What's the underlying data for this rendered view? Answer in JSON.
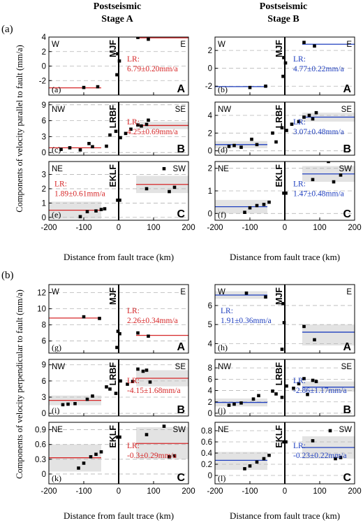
{
  "figure": {
    "columns": [
      {
        "line1": "Postseismic",
        "line2": "Stage A"
      },
      {
        "line1": "Postseismic",
        "line2": "Stage B"
      }
    ],
    "sections": [
      {
        "label": "(a)",
        "ylabel": "Components of velocity parallel to fault (mm/a)",
        "xlabel": "Distance from fault trace (km)"
      },
      {
        "label": "(b)",
        "ylabel": "Components of velocity perpendicular to fault (mm/a)",
        "xlabel": "Distance from fault trace (km)"
      }
    ],
    "colors": {
      "stage_a": "#d62728",
      "stage_b": "#1f3fbf",
      "band": "#e3e3e3",
      "grid": "#b5b5b5"
    }
  },
  "chart_data": [
    {
      "type": "scatter",
      "section": "a",
      "stage": "A",
      "panel_label": "(a)",
      "fault": "MJF",
      "big_letter": "A",
      "left_dir": "W",
      "right_dir": "E",
      "ylim": [
        -4,
        4
      ],
      "yticks": [
        -2,
        0,
        2,
        4
      ],
      "xlim": [
        -200,
        200
      ],
      "xticks": [
        -200,
        -100,
        0,
        100,
        200
      ],
      "left_points": [
        [
          -100,
          -2.95
        ],
        [
          -60,
          -2.85
        ]
      ],
      "center_points": [
        [
          -5,
          -1.2
        ],
        [
          -3,
          1.7
        ],
        [
          2,
          0.7
        ]
      ],
      "right_points": [
        [
          55,
          3.95
        ],
        [
          85,
          3.7
        ]
      ],
      "left_mean": -3.0,
      "left_band": null,
      "right_mean": 3.9,
      "right_band": null,
      "lr_text": [
        "LR:",
        "6.79±0.20mm/a"
      ],
      "lr_pos": "right"
    },
    {
      "type": "scatter",
      "section": "a",
      "stage": "B",
      "panel_label": "(b)",
      "fault": "MJF",
      "big_letter": "A",
      "left_dir": "W",
      "right_dir": "E",
      "ylim": [
        -3,
        3.5
      ],
      "yticks": [
        -2,
        0,
        2
      ],
      "xlim": [
        -200,
        200
      ],
      "xticks": [
        -200,
        -100,
        0,
        100,
        200
      ],
      "left_points": [
        [
          -100,
          -2.15
        ],
        [
          -55,
          -2.0
        ]
      ],
      "center_points": [
        [
          -5,
          -0.9
        ],
        [
          -3,
          1.2
        ],
        [
          2,
          0.6
        ]
      ],
      "right_points": [
        [
          55,
          2.9
        ],
        [
          85,
          2.5
        ]
      ],
      "left_mean": -2.05,
      "left_band": null,
      "right_mean": 2.7,
      "right_band": null,
      "lr_text": [
        "LR:",
        "4.77±0.22mm/a"
      ],
      "lr_pos": "right"
    },
    {
      "type": "scatter",
      "section": "a",
      "stage": "A",
      "panel_label": "(c)",
      "fault": "LRBF",
      "big_letter": "B",
      "left_dir": "NW",
      "right_dir": "SE",
      "ylim": [
        -0.5,
        9.5
      ],
      "yticks": [
        0,
        3,
        6,
        9
      ],
      "xlim": [
        -200,
        200
      ],
      "xticks": [
        -200,
        -100,
        0,
        100,
        200
      ],
      "left_points": [
        [
          -165,
          0.6
        ],
        [
          -140,
          0.9
        ],
        [
          -110,
          0.5
        ],
        [
          -85,
          1.7
        ],
        [
          -75,
          1.1
        ]
      ],
      "center_points": [
        [
          -35,
          1.2
        ],
        [
          -25,
          3.3
        ],
        [
          -8,
          4.0
        ],
        [
          5,
          2.8
        ]
      ],
      "right_points": [
        [
          20,
          3.6
        ],
        [
          35,
          4.4
        ],
        [
          55,
          5.2
        ],
        [
          65,
          5.0
        ],
        [
          80,
          5.3
        ],
        [
          85,
          6.1
        ]
      ],
      "left_mean": 0.9,
      "left_band": null,
      "right_mean": 5.1,
      "right_band": [
        4.4,
        5.8
      ],
      "lr_text": [
        "LR:",
        "4.25±0.69mm/a"
      ],
      "lr_pos": "right"
    },
    {
      "type": "scatter",
      "section": "a",
      "stage": "B",
      "panel_label": "(d)",
      "fault": "LRBF",
      "big_letter": "B",
      "left_dir": "NW",
      "right_dir": "SE",
      "ylim": [
        -0.5,
        5.5
      ],
      "yticks": [
        0,
        2,
        4
      ],
      "xlim": [
        -200,
        200
      ],
      "xticks": [
        -200,
        -100,
        0,
        100,
        200
      ],
      "left_points": [
        [
          -160,
          0.5
        ],
        [
          -145,
          0.6
        ],
        [
          -125,
          0.4
        ],
        [
          -95,
          1.3
        ],
        [
          -80,
          0.7
        ]
      ],
      "center_points": [
        [
          -35,
          2.0
        ],
        [
          -25,
          1.0
        ],
        [
          -8,
          2.6
        ],
        [
          5,
          2.3
        ]
      ],
      "right_points": [
        [
          20,
          3.0
        ],
        [
          40,
          3.3
        ],
        [
          55,
          3.8
        ],
        [
          70,
          4.0
        ],
        [
          80,
          3.6
        ],
        [
          90,
          4.3
        ]
      ],
      "left_mean": 0.7,
      "left_band": [
        0.3,
        1.1
      ],
      "right_mean": 3.8,
      "right_band": [
        3.3,
        4.3
      ],
      "lr_text": [
        "LR:",
        "3.07±0.48mm/a"
      ],
      "lr_pos": "right"
    },
    {
      "type": "scatter",
      "section": "a",
      "stage": "A",
      "panel_label": "(e)",
      "fault": "EKLF",
      "big_letter": "C",
      "left_dir": "NE",
      "right_dir": "SW",
      "ylim": [
        -0.2,
        3.9
      ],
      "yticks": [
        0,
        1,
        2,
        3
      ],
      "xlim": [
        -200,
        200
      ],
      "xticks": [
        -200,
        -100,
        0,
        100,
        200
      ],
      "left_points": [
        [
          -110,
          0.05
        ],
        [
          -90,
          0.4
        ],
        [
          -65,
          0.45
        ],
        [
          -50,
          0.55
        ],
        [
          -40,
          0.6
        ]
      ],
      "center_points": [
        [
          -3,
          1.2
        ],
        [
          3,
          1.2
        ]
      ],
      "right_points": [
        [
          80,
          2.0
        ],
        [
          130,
          3.4
        ],
        [
          145,
          1.8
        ],
        [
          160,
          2.1
        ]
      ],
      "left_mean": 0.5,
      "left_band": [
        -0.1,
        1.1
      ],
      "right_mean": 2.3,
      "right_band": [
        1.7,
        2.9
      ],
      "lr_text": [
        "LR:",
        "1.89±0.61mm/a"
      ],
      "lr_pos": "left"
    },
    {
      "type": "scatter",
      "section": "a",
      "stage": "B",
      "panel_label": "(f)",
      "fault": "EKLF",
      "big_letter": "C",
      "left_dir": "NE",
      "right_dir": "SW",
      "ylim": [
        -0.3,
        2.3
      ],
      "yticks": [
        0,
        1,
        2
      ],
      "xlim": [
        -200,
        200
      ],
      "xticks": [
        -200,
        -100,
        0,
        100,
        200
      ],
      "left_points": [
        [
          -115,
          0.05
        ],
        [
          -100,
          0.25
        ],
        [
          -80,
          0.35
        ],
        [
          -60,
          0.4
        ],
        [
          -45,
          0.5
        ]
      ],
      "center_points": [
        [
          -3,
          0.9
        ],
        [
          3,
          0.9
        ]
      ],
      "right_points": [
        [
          80,
          1.5
        ],
        [
          125,
          2.3
        ],
        [
          140,
          1.4
        ],
        [
          160,
          1.7
        ]
      ],
      "left_mean": 0.3,
      "left_band": [
        0.0,
        0.6
      ],
      "right_mean": 1.75,
      "right_band": [
        1.4,
        2.1
      ],
      "lr_text": [
        "LR:",
        "1.47±0.48mm/a"
      ],
      "lr_pos": "right"
    },
    {
      "type": "scatter",
      "section": "b",
      "stage": "A",
      "panel_label": "(g)",
      "fault": "MJF",
      "big_letter": "A",
      "left_dir": "W",
      "right_dir": "E",
      "ylim": [
        4.5,
        13
      ],
      "yticks": [
        6,
        8,
        10,
        12
      ],
      "xlim": [
        -200,
        200
      ],
      "xticks": [
        -200,
        -100,
        0,
        100,
        200
      ],
      "left_points": [
        [
          -100,
          9.0
        ],
        [
          -55,
          8.8
        ]
      ],
      "center_points": [
        [
          -5,
          5.2
        ],
        [
          -2,
          7.2
        ],
        [
          3,
          6.9
        ]
      ],
      "right_points": [
        [
          55,
          7.0
        ],
        [
          85,
          6.6
        ]
      ],
      "left_mean": 8.85,
      "left_band": null,
      "right_mean": 6.7,
      "right_band": null,
      "lr_text": [
        "LR:",
        "2.26±0.34mm/a"
      ],
      "lr_pos": "right"
    },
    {
      "type": "scatter",
      "section": "b",
      "stage": "B",
      "panel_label": "(h)",
      "fault": "MJF",
      "big_letter": "A",
      "left_dir": "W",
      "right_dir": "E",
      "ylim": [
        3.5,
        7.1
      ],
      "yticks": [
        4,
        5,
        6
      ],
      "xlim": [
        -200,
        200
      ],
      "xticks": [
        -200,
        -100,
        0,
        100,
        200
      ],
      "left_points": [
        [
          -110,
          6.65
        ],
        [
          -55,
          6.45
        ]
      ],
      "center_points": [
        [
          -8,
          3.7
        ],
        [
          -5,
          6.1
        ],
        [
          -2,
          5.1
        ]
      ],
      "right_points": [
        [
          55,
          4.9
        ],
        [
          85,
          4.2
        ]
      ],
      "left_mean": 6.55,
      "left_band": [
        6.35,
        6.75
      ],
      "right_mean": 4.6,
      "right_band": [
        3.9,
        5.0
      ],
      "lr_text": [
        "LR:",
        "1.91±0.36mm/a"
      ],
      "lr_pos": "left"
    },
    {
      "type": "scatter",
      "section": "b",
      "stage": "A",
      "panel_label": "(i)",
      "fault": "LRBF",
      "big_letter": "B",
      "left_dir": "NW",
      "right_dir": "SE",
      "ylim": [
        -0.5,
        10
      ],
      "yticks": [
        0,
        3,
        6,
        9
      ],
      "xlim": [
        -200,
        200
      ],
      "xticks": [
        -200,
        -100,
        0,
        100,
        200
      ],
      "left_points": [
        [
          -160,
          1.6
        ],
        [
          -145,
          1.7
        ],
        [
          -125,
          1.8
        ],
        [
          -90,
          2.6
        ],
        [
          -75,
          3.2
        ]
      ],
      "center_points": [
        [
          -35,
          4.9
        ],
        [
          -25,
          4.5
        ],
        [
          -8,
          3.7
        ],
        [
          5,
          6.0
        ]
      ],
      "right_points": [
        [
          25,
          5.4
        ],
        [
          40,
          5.9
        ],
        [
          55,
          8.2
        ],
        [
          70,
          7.8
        ],
        [
          80,
          8.0
        ],
        [
          90,
          5.8
        ]
      ],
      "left_mean": 2.4,
      "left_band": [
        1.5,
        3.3
      ],
      "right_mean": 6.5,
      "right_band": [
        5.0,
        8.0
      ],
      "lr_text": [
        "LR:",
        "-4.15±1.68mm/a"
      ],
      "lr_pos": "right"
    },
    {
      "type": "scatter",
      "section": "b",
      "stage": "B",
      "panel_label": "(j)",
      "fault": "LRBF",
      "big_letter": "B",
      "left_dir": "NW",
      "right_dir": "SE",
      "ylim": [
        -0.5,
        9.5
      ],
      "yticks": [
        0,
        2,
        4,
        6,
        8
      ],
      "xlim": [
        -200,
        200
      ],
      "xticks": [
        -200,
        -100,
        0,
        100,
        200
      ],
      "left_points": [
        [
          -160,
          1.4
        ],
        [
          -145,
          1.6
        ],
        [
          -125,
          1.8
        ],
        [
          -90,
          2.5
        ],
        [
          -75,
          3.1
        ]
      ],
      "center_points": [
        [
          -35,
          3.9
        ],
        [
          -25,
          3.4
        ],
        [
          -8,
          2.8
        ],
        [
          5,
          4.8
        ]
      ],
      "right_points": [
        [
          25,
          4.4
        ],
        [
          40,
          5.2
        ],
        [
          55,
          6.1
        ],
        [
          65,
          3.3
        ],
        [
          80,
          5.8
        ],
        [
          90,
          5.6
        ]
      ],
      "left_mean": 1.9,
      "left_band": [
        1.2,
        2.6
      ],
      "right_mean": 4.6,
      "right_band": [
        3.8,
        5.6
      ],
      "lr_text": [
        "LR:",
        "-2.86±1.17mm/a"
      ],
      "lr_pos": "right"
    },
    {
      "type": "scatter",
      "section": "b",
      "stage": "A",
      "panel_label": "(k)",
      "fault": "EKLF",
      "big_letter": "C",
      "left_dir": "NE",
      "right_dir": "SW",
      "ylim": [
        -0.2,
        1.05
      ],
      "yticks": [
        0,
        0.3,
        0.6,
        0.9
      ],
      "xlim": [
        -200,
        200
      ],
      "xticks": [
        -200,
        -100,
        0,
        100,
        200
      ],
      "left_points": [
        [
          -115,
          0.12
        ],
        [
          -100,
          0.22
        ],
        [
          -80,
          0.35
        ],
        [
          -65,
          0.4
        ],
        [
          -50,
          0.45
        ]
      ],
      "center_points": [
        [
          -3,
          0.75
        ],
        [
          3,
          0.75
        ]
      ],
      "right_points": [
        [
          80,
          0.8
        ],
        [
          130,
          0.97
        ],
        [
          145,
          0.35
        ],
        [
          160,
          0.37
        ]
      ],
      "left_mean": 0.33,
      "left_band": [
        0.05,
        0.6
      ],
      "right_mean": 0.62,
      "right_band": [
        0.3,
        0.95
      ],
      "lr_text": [
        "LR:",
        "-0.3±0.29mm/a"
      ],
      "lr_pos": "right"
    },
    {
      "type": "scatter",
      "section": "b",
      "stage": "B",
      "panel_label": "(l)",
      "fault": "EKLF",
      "big_letter": "C",
      "left_dir": "NE",
      "right_dir": "SW",
      "ylim": [
        -0.15,
        0.95
      ],
      "yticks": [
        0,
        0.2,
        0.4,
        0.6,
        0.8
      ],
      "xlim": [
        -200,
        200
      ],
      "xticks": [
        -200,
        -100,
        0,
        100,
        200
      ],
      "left_points": [
        [
          -115,
          0.12
        ],
        [
          -100,
          0.17
        ],
        [
          -80,
          0.24
        ],
        [
          -60,
          0.3
        ],
        [
          -45,
          0.36
        ]
      ],
      "center_points": [
        [
          -3,
          0.6
        ],
        [
          3,
          0.6
        ]
      ],
      "right_points": [
        [
          80,
          0.62
        ],
        [
          130,
          0.8
        ],
        [
          145,
          0.3
        ],
        [
          160,
          0.32
        ]
      ],
      "left_mean": 0.27,
      "left_band": [
        0.1,
        0.42
      ],
      "right_mean": 0.5,
      "right_band": [
        0.3,
        0.7
      ],
      "lr_text": [
        "LR:",
        "-0.23±0.22mm/a"
      ],
      "lr_pos": "right"
    }
  ]
}
